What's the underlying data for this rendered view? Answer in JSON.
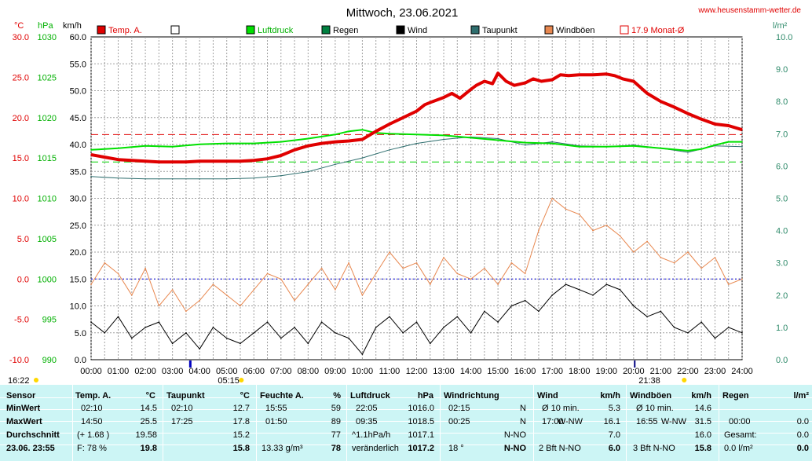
{
  "title": "Mittwoch, 23.06.2021",
  "website": "www.heusenstamm-wetter.de",
  "units": {
    "temp": "°C",
    "pressure": "hPa",
    "wind": "km/h",
    "rain": "l/m²"
  },
  "legend": [
    {
      "label": "Temp. A.",
      "color": "#e00000"
    },
    {
      "label": "",
      "color": "#ffffff"
    },
    {
      "label": "Luftdruck",
      "color": "#00e000"
    },
    {
      "label": "Regen",
      "color": "#008040"
    },
    {
      "label": "Wind",
      "color": "#000000"
    },
    {
      "label": "Taupunkt",
      "color": "#2e6e6e"
    },
    {
      "label": "Windböen",
      "color": "#e88850"
    },
    {
      "label": "17.9 Monat-Ø",
      "color": "#e00000"
    }
  ],
  "colors": {
    "temp": "#e00000",
    "pressure": "#00e000",
    "rain": "#008040",
    "wind": "#000000",
    "dewpoint": "#2e6e6e",
    "gust": "#e88850",
    "grid": "#a0a0a0",
    "statsBg": "#ccf5f5"
  },
  "markers": {
    "sunrise": "05:15",
    "sunset": "21:38",
    "update": "16:22"
  },
  "chart_data": {
    "type": "line",
    "x_ticks": [
      "00:00",
      "01:00",
      "02:00",
      "03:00",
      "04:00",
      "05:00",
      "06:00",
      "07:00",
      "08:00",
      "09:00",
      "10:00",
      "11:00",
      "12:00",
      "13:00",
      "14:00",
      "15:00",
      "16:00",
      "17:00",
      "18:00",
      "19:00",
      "20:00",
      "21:00",
      "22:00",
      "23:00",
      "24:00"
    ],
    "xlim": [
      0,
      24
    ],
    "axes": {
      "temp": {
        "ylim": [
          -10,
          30
        ],
        "ticks": [
          "30.0",
          "25.0",
          "20.0",
          "15.0",
          "10.0",
          "5.0",
          "0.0",
          "-5.0",
          "-10.0"
        ]
      },
      "pressure": {
        "ylim": [
          990,
          1030
        ],
        "ticks": [
          "1030",
          "1025",
          "1020",
          "1015",
          "1010",
          "1005",
          "1000",
          "995",
          "990"
        ]
      },
      "wind": {
        "ylim": [
          0,
          60
        ],
        "ticks": [
          "60.0",
          "55.0",
          "50.0",
          "45.0",
          "40.0",
          "35.0",
          "30.0",
          "25.0",
          "20.0",
          "15.0",
          "10.0",
          "5.0",
          "0.0"
        ]
      },
      "rain": {
        "ylim": [
          0,
          10
        ],
        "ticks": [
          "10.0",
          "9.0",
          "8.0",
          "7.0",
          "6.0",
          "5.0",
          "4.0",
          "3.0",
          "2.0",
          "1.0",
          "0.0"
        ]
      }
    },
    "reference_lines": [
      {
        "name": "17.9 Monat-Ø",
        "axis": "temp",
        "value": 17.9
      },
      {
        "axis": "pressure",
        "value": 1000
      },
      {
        "axis": "temp",
        "value": 14.5
      }
    ],
    "series": [
      {
        "name": "Temp. A.",
        "axis": "temp",
        "x": [
          0,
          0.5,
          1,
          1.5,
          2,
          2.5,
          3,
          3.5,
          4,
          4.5,
          5,
          5.5,
          6,
          6.5,
          7,
          7.5,
          8,
          8.5,
          9,
          9.5,
          10,
          10.5,
          11,
          11.5,
          12,
          12.3,
          12.6,
          13,
          13.3,
          13.6,
          14,
          14.2,
          14.5,
          14.8,
          15,
          15.3,
          15.6,
          16,
          16.3,
          16.6,
          17,
          17.3,
          17.6,
          18,
          18.5,
          19,
          19.3,
          19.6,
          20,
          20.5,
          21,
          21.5,
          22,
          22.5,
          23,
          23.5,
          24
        ],
        "y": [
          15.4,
          15.1,
          14.8,
          14.7,
          14.6,
          14.5,
          14.5,
          14.5,
          14.6,
          14.6,
          14.6,
          14.6,
          14.7,
          14.9,
          15.3,
          16.0,
          16.5,
          16.8,
          17.0,
          17.1,
          17.3,
          18.3,
          19.2,
          20.0,
          20.8,
          21.6,
          22.0,
          22.5,
          23.0,
          22.4,
          23.5,
          24.0,
          24.5,
          24.2,
          25.5,
          24.5,
          24.0,
          24.3,
          24.8,
          24.5,
          24.7,
          25.3,
          25.2,
          25.3,
          25.3,
          25.4,
          25.2,
          24.8,
          24.5,
          23.0,
          22.0,
          21.3,
          20.5,
          19.8,
          19.2,
          19.0,
          18.5
        ]
      },
      {
        "name": "Luftdruck",
        "axis": "pressure",
        "x": [
          0,
          1,
          2,
          3,
          4,
          5,
          6,
          7,
          8,
          9,
          9.5,
          10,
          10.5,
          11,
          12,
          13,
          14,
          15,
          16,
          17,
          18,
          19,
          20,
          21,
          22,
          22.5,
          23,
          23.5,
          24
        ],
        "y": [
          1016.0,
          1016.2,
          1016.5,
          1016.4,
          1016.7,
          1016.8,
          1016.8,
          1017.0,
          1017.4,
          1017.9,
          1018.3,
          1018.5,
          1018.1,
          1018.0,
          1017.9,
          1017.8,
          1017.5,
          1017.2,
          1016.9,
          1016.8,
          1016.4,
          1016.4,
          1016.5,
          1016.2,
          1015.9,
          1016.1,
          1016.6,
          1017.0,
          1017.0
        ]
      },
      {
        "name": "Taupunkt",
        "axis": "temp",
        "x": [
          0,
          1,
          2,
          3,
          4,
          5,
          6,
          7,
          8,
          9,
          10,
          11,
          12,
          13,
          14,
          15,
          16,
          17,
          18,
          19,
          20,
          21,
          22,
          23,
          24
        ],
        "y": [
          12.7,
          12.5,
          12.4,
          12.4,
          12.4,
          12.4,
          12.5,
          12.8,
          13.3,
          14.2,
          15.0,
          16.0,
          16.8,
          17.3,
          17.6,
          17.4,
          16.6,
          17.0,
          16.5,
          16.4,
          16.6,
          16.2,
          15.7,
          16.5,
          16.4
        ]
      },
      {
        "name": "Wind",
        "axis": "wind",
        "x": [
          0,
          0.5,
          1,
          1.5,
          2,
          2.5,
          3,
          3.5,
          4,
          4.5,
          5,
          5.5,
          6,
          6.5,
          7,
          7.5,
          8,
          8.5,
          9,
          9.5,
          10,
          10.5,
          11,
          11.5,
          12,
          12.5,
          13,
          13.5,
          14,
          14.5,
          15,
          15.5,
          16,
          16.5,
          17,
          17.5,
          18,
          18.5,
          19,
          19.5,
          20,
          20.5,
          21,
          21.5,
          22,
          22.5,
          23,
          23.5,
          24
        ],
        "y": [
          7,
          5,
          8,
          4,
          6,
          7,
          3,
          5,
          2,
          6,
          4,
          3,
          5,
          7,
          4,
          6,
          3,
          7,
          5,
          4,
          1,
          6,
          8,
          5,
          7,
          3,
          6,
          8,
          5,
          9,
          7,
          10,
          11,
          9,
          12,
          14,
          13,
          12,
          14,
          13,
          10,
          8,
          9,
          6,
          5,
          7,
          4,
          6,
          5
        ]
      },
      {
        "name": "Windböen",
        "axis": "wind",
        "x": [
          0,
          0.5,
          1,
          1.5,
          2,
          2.5,
          3,
          3.5,
          4,
          4.5,
          5,
          5.5,
          6,
          6.5,
          7,
          7.5,
          8,
          8.5,
          9,
          9.5,
          10,
          10.5,
          11,
          11.5,
          12,
          12.5,
          13,
          13.5,
          14,
          14.5,
          15,
          15.5,
          16,
          16.5,
          17,
          17.5,
          18,
          18.5,
          19,
          19.5,
          20,
          20.5,
          21,
          21.5,
          22,
          22.5,
          23,
          23.5,
          24
        ],
        "y": [
          14,
          18,
          16,
          12,
          17,
          10,
          13,
          9,
          11,
          14,
          12,
          10,
          13,
          16,
          15,
          11,
          14,
          17,
          13,
          18,
          12,
          16,
          20,
          17,
          18,
          14,
          19,
          16,
          15,
          17,
          14,
          18,
          16,
          24,
          30,
          28,
          27,
          24,
          25,
          23,
          20,
          22,
          19,
          18,
          20,
          17,
          19,
          14,
          15
        ]
      }
    ]
  },
  "stats": {
    "headers": [
      {
        "label": "Sensor",
        "unit": ""
      },
      {
        "label": "Temp. A.",
        "unit": "°C"
      },
      {
        "label": "Taupunkt",
        "unit": "°C"
      },
      {
        "label": "Feuchte A.",
        "unit": "%"
      },
      {
        "label": "Luftdruck",
        "unit": "hPa"
      },
      {
        "label": "Windrichtung",
        "unit": ""
      },
      {
        "label": "Wind",
        "unit": "km/h"
      },
      {
        "label": "Windböen",
        "unit": "km/h"
      },
      {
        "label": "Regen",
        "unit": "l/m²"
      }
    ],
    "rows": [
      {
        "sensor": "MinWert",
        "temp_t": "02:10",
        "temp_v": "14.5",
        "dew_t": "02:10",
        "dew_v": "12.7",
        "hum_t": "15:55",
        "hum_v": "59",
        "pres_t": "22:05",
        "pres_v": "1016.0",
        "wd_t": "02:15",
        "wd_v": "N",
        "wind_t": "Ø 10 min.",
        "wind_d": "",
        "wind_v": "5.3",
        "gust_t": "Ø 10 min.",
        "gust_d": "",
        "gust_v": "14.6",
        "rain_t": "",
        "rain_v": ""
      },
      {
        "sensor": "MaxWert",
        "temp_t": "14:50",
        "temp_v": "25.5",
        "dew_t": "17:25",
        "dew_v": "17.8",
        "hum_t": "01:50",
        "hum_v": "89",
        "pres_t": "09:35",
        "pres_v": "1018.5",
        "wd_t": "00:25",
        "wd_v": "N",
        "wind_t": "17:00",
        "wind_d": "W-NW",
        "wind_v": "16.1",
        "gust_t": "16:55",
        "gust_d": "W-NW",
        "gust_v": "31.5",
        "rain_t": "00:00",
        "rain_v": "0.0"
      },
      {
        "sensor": "Durchschnitt",
        "temp_t": "(+ 1.68 )",
        "temp_v": "19.58",
        "dew_t": "",
        "dew_v": "15.2",
        "hum_t": "",
        "hum_v": "77",
        "pres_t": "^1.1hPa/h",
        "pres_v": "1017.1",
        "wd_t": "",
        "wd_v": "N-NO",
        "wind_t": "",
        "wind_d": "",
        "wind_v": "7.0",
        "gust_t": "",
        "gust_d": "",
        "gust_v": "16.0",
        "rain_t": "Gesamt:",
        "rain_v": "0.0"
      },
      {
        "sensor": "23.06. 23:55",
        "temp_t": "F: 78 %",
        "temp_v": "19.8",
        "dew_t": "",
        "dew_v": "15.8",
        "hum_t": "13.33 g/m³",
        "hum_v": "78",
        "pres_t": "veränderlich",
        "pres_v": "1017.2",
        "wd_t": "18 °",
        "wd_v": "N-NO",
        "wind_t": "2 Bft N-NO",
        "wind_d": "",
        "wind_v": "6.0",
        "gust_t": "3 Bft N-NO",
        "gust_d": "",
        "gust_v": "15.8",
        "rain_t": "0.0 l/m²",
        "rain_v": "0.0"
      }
    ]
  }
}
